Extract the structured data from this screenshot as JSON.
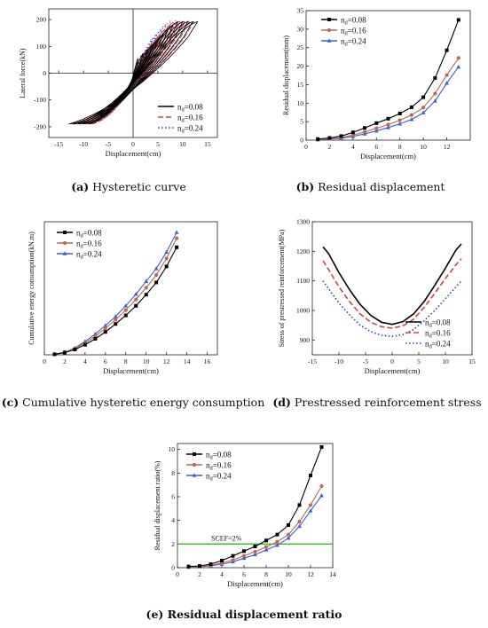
{
  "chart_data": [
    {
      "id": "a",
      "type": "line",
      "caption_letter": "(a)",
      "caption_text": " Hysteretic curve",
      "xlabel": "Displacement(cm)",
      "ylabel": "Lateral force(kN)",
      "xlim": [
        -17,
        17
      ],
      "ylim": [
        -240,
        240
      ],
      "xticks": [
        -15,
        -10,
        -5,
        0,
        5,
        10,
        15
      ],
      "yticks": [
        -200,
        -100,
        0,
        100,
        200
      ],
      "grid": false,
      "legend_position": "bottom-right",
      "axes_through_origin": true,
      "hysteresis": {
        "cycle_amplitudes_cm": [
          1,
          2,
          3,
          4,
          5,
          6,
          7,
          8,
          9,
          10,
          11,
          12,
          13
        ],
        "peak_force_kN": 192,
        "negative_peak_force_kN": -190
      },
      "series": [
        {
          "name": "n",
          "subscript": "d",
          "value_text": "=0.08",
          "color": "#000000",
          "dash": "solid"
        },
        {
          "name": "n",
          "subscript": "d",
          "value_text": "=0.16",
          "color": "#d9413c",
          "dash": "dashed"
        },
        {
          "name": "n",
          "subscript": "d",
          "value_text": "=0.24",
          "color": "#2b3bd6",
          "dash": "dotted"
        }
      ]
    },
    {
      "id": "b",
      "type": "line",
      "caption_letter": "(b)",
      "caption_text": " Residual displacement",
      "xlabel": "Displacement(cm)",
      "ylabel": "Residual displacement(mm)",
      "xlim": [
        0,
        14
      ],
      "ylim": [
        0,
        35
      ],
      "xticks": [
        0,
        2,
        4,
        6,
        8,
        10,
        12
      ],
      "yticks": [
        0,
        5,
        10,
        15,
        20,
        25,
        30,
        35
      ],
      "grid": false,
      "legend_position": "top-left",
      "x": [
        1,
        2,
        3,
        4,
        5,
        6,
        7,
        8,
        9,
        10,
        11,
        12,
        13
      ],
      "series": [
        {
          "name": "n",
          "subscript": "d",
          "value_text": "=0.08",
          "color": "#000000",
          "marker": "square",
          "values": [
            0.3,
            0.6,
            1.1,
            2.1,
            3.3,
            4.6,
            5.8,
            7.2,
            8.9,
            11.6,
            16.8,
            24.3,
            32.5
          ]
        },
        {
          "name": "n",
          "subscript": "d",
          "value_text": "=0.16",
          "color": "#c0674d",
          "marker": "circle",
          "values": [
            0.2,
            0.4,
            0.7,
            1.4,
            2.2,
            3.2,
            4.2,
            5.4,
            6.8,
            8.8,
            12.6,
            17.6,
            22.2
          ]
        },
        {
          "name": "n",
          "subscript": "d",
          "value_text": "=0.24",
          "color": "#3a5fd9",
          "marker": "triangle",
          "values": [
            0.1,
            0.3,
            0.5,
            1.0,
            1.7,
            2.5,
            3.4,
            4.4,
            5.6,
            7.4,
            10.6,
            15.4,
            19.8
          ]
        }
      ]
    },
    {
      "id": "c",
      "type": "line",
      "caption_letter": "(c)",
      "caption_text": " Cumulative hysteretic energy consumption",
      "xlabel": "Displacement(cm)",
      "ylabel": "Cumulative energy consumption(kN.m)",
      "xlim": [
        0,
        17
      ],
      "ylim": [
        0,
        25
      ],
      "xticks": [
        0,
        2,
        4,
        6,
        8,
        10,
        12,
        14,
        16
      ],
      "yticks": [],
      "grid": false,
      "legend_position": "top-left",
      "x": [
        1,
        2,
        3,
        4,
        5,
        6,
        7,
        8,
        9,
        10,
        11,
        12,
        13
      ],
      "series": [
        {
          "name": "n",
          "subscript": "d",
          "value_text": "=0.08",
          "color": "#000000",
          "marker": "square",
          "values": [
            0.1,
            0.4,
            1.0,
            1.9,
            3.0,
            4.3,
            5.8,
            7.4,
            9.2,
            11.3,
            13.6,
            16.6,
            20.2
          ]
        },
        {
          "name": "n",
          "subscript": "d",
          "value_text": "=0.16",
          "color": "#c0674d",
          "marker": "circle",
          "values": [
            0.1,
            0.5,
            1.2,
            2.2,
            3.5,
            5.0,
            6.6,
            8.4,
            10.4,
            12.6,
            15.0,
            18.1,
            21.9
          ]
        },
        {
          "name": "n",
          "subscript": "d",
          "value_text": "=0.24",
          "color": "#3a5fd9",
          "marker": "triangle",
          "values": [
            0.1,
            0.5,
            1.3,
            2.5,
            3.9,
            5.5,
            7.2,
            9.2,
            11.4,
            13.8,
            16.2,
            19.3,
            23.0
          ]
        }
      ]
    },
    {
      "id": "d",
      "type": "line",
      "caption_letter": "(d)",
      "caption_text": " Prestressed reinforcement stress",
      "xlabel": "Displacement(cm)",
      "ylabel": "Stress of prestressed reinforcement(MPa)",
      "xlim": [
        -15,
        15
      ],
      "ylim": [
        850,
        1300
      ],
      "xticks": [
        -15,
        -10,
        -5,
        0,
        5,
        10,
        15
      ],
      "yticks": [
        900,
        1000,
        1100,
        1200,
        1300
      ],
      "grid": false,
      "legend_position": "bottom-right",
      "x": [
        -13,
        -12,
        -10,
        -8,
        -6,
        -4,
        -2,
        0,
        2,
        4,
        6,
        8,
        10,
        12,
        13
      ],
      "series": [
        {
          "name": "n",
          "subscript": "d",
          "value_text": "=0.08",
          "color": "#000000",
          "dash": "solid",
          "values": [
            1215,
            1194,
            1128,
            1070,
            1020,
            983,
            960,
            953,
            962,
            988,
            1030,
            1085,
            1143,
            1205,
            1225
          ]
        },
        {
          "name": "n",
          "subscript": "d",
          "value_text": "=0.16",
          "color": "#d9413c",
          "dash": "dashed",
          "values": [
            1168,
            1140,
            1080,
            1030,
            988,
            960,
            945,
            940,
            948,
            970,
            1010,
            1058,
            1108,
            1155,
            1175
          ]
        },
        {
          "name": "n",
          "subscript": "d",
          "value_text": "=0.24",
          "color": "#2b3bd6",
          "dash": "dotted",
          "values": [
            1100,
            1075,
            1025,
            985,
            950,
            928,
            916,
            912,
            918,
            935,
            965,
            1000,
            1040,
            1080,
            1100
          ]
        }
      ]
    },
    {
      "id": "e",
      "type": "line",
      "caption_letter": "(e)",
      "caption_text": " Residual displacement ratio",
      "xlabel": "Displacement(cm)",
      "ylabel": "Residual displacement ratio(%)",
      "xlim": [
        0,
        14
      ],
      "ylim": [
        0,
        10.5
      ],
      "xticks": [
        0,
        2,
        4,
        6,
        8,
        10,
        12,
        14
      ],
      "yticks": [
        0,
        2,
        4,
        6,
        8,
        10
      ],
      "grid": false,
      "legend_position": "top-left",
      "reference_line": {
        "label": "SCEF=2%",
        "y": 2,
        "color": "#3bb31e"
      },
      "x": [
        1,
        2,
        3,
        4,
        5,
        6,
        7,
        8,
        9,
        10,
        11,
        12,
        13
      ],
      "series": [
        {
          "name": "n",
          "subscript": "d",
          "value_text": "=0.08",
          "color": "#000000",
          "marker": "square",
          "values": [
            0.1,
            0.15,
            0.3,
            0.6,
            1.0,
            1.4,
            1.8,
            2.3,
            2.8,
            3.6,
            5.3,
            7.8,
            10.2
          ]
        },
        {
          "name": "n",
          "subscript": "d",
          "value_text": "=0.16",
          "color": "#c0674d",
          "marker": "circle",
          "values": [
            0.05,
            0.1,
            0.2,
            0.4,
            0.65,
            1.0,
            1.35,
            1.75,
            2.2,
            2.8,
            3.9,
            5.3,
            6.9
          ]
        },
        {
          "name": "n",
          "subscript": "d",
          "value_text": "=0.24",
          "color": "#3a5fd9",
          "marker": "triangle",
          "values": [
            0.04,
            0.08,
            0.15,
            0.3,
            0.5,
            0.8,
            1.1,
            1.5,
            1.9,
            2.5,
            3.5,
            4.8,
            6.1
          ]
        }
      ]
    }
  ]
}
